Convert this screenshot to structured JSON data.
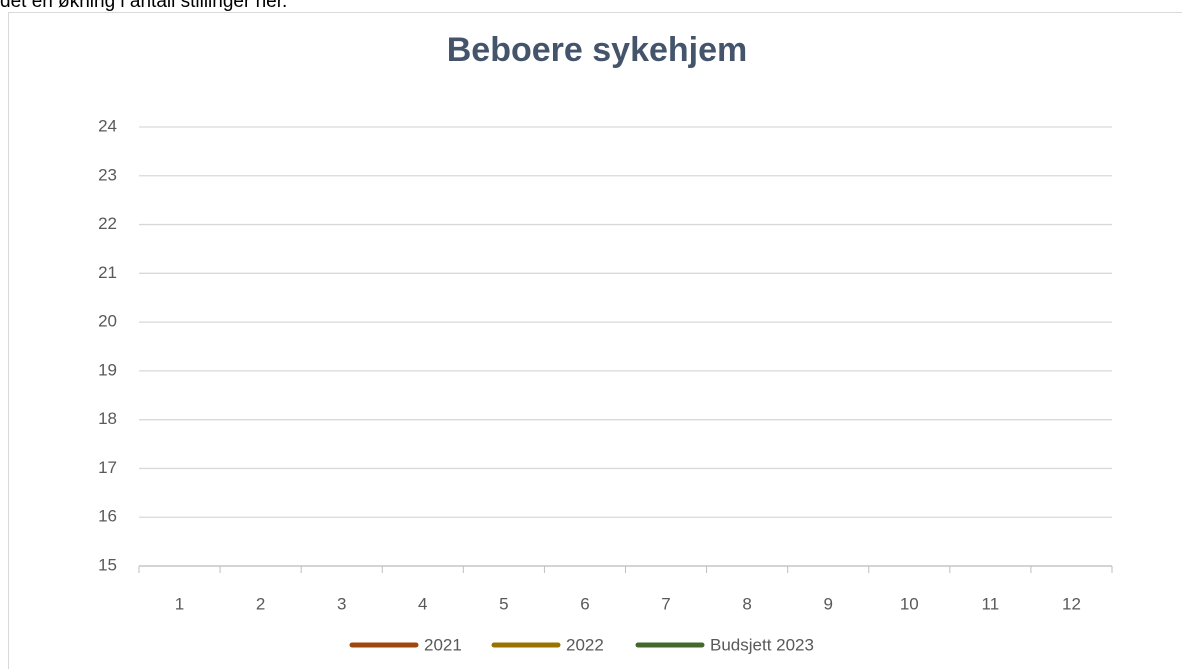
{
  "header_text": "det en økning i antall stillinger her.",
  "chart_data": {
    "type": "line",
    "title": "Beboere sykehjem",
    "categories": [
      "1",
      "2",
      "3",
      "4",
      "5",
      "6",
      "7",
      "8",
      "9",
      "10",
      "11",
      "12"
    ],
    "series": [
      {
        "name": "2021",
        "color": "#9e480e",
        "values": [
          null,
          null,
          null,
          null,
          null,
          null,
          null,
          null,
          null,
          null,
          null,
          null
        ]
      },
      {
        "name": "2022",
        "color": "#997300",
        "values": [
          null,
          null,
          null,
          null,
          null,
          null,
          null,
          null,
          null,
          null,
          null,
          null
        ]
      },
      {
        "name": "Budsjett 2023",
        "color": "#43682b",
        "values": [
          null,
          null,
          null,
          null,
          null,
          null,
          null,
          null,
          null,
          null,
          null,
          null
        ]
      }
    ],
    "ylim": [
      15,
      24
    ],
    "yticks": [
      15,
      16,
      17,
      18,
      19,
      20,
      21,
      22,
      23,
      24
    ],
    "grid": true,
    "legend": "bottom"
  }
}
